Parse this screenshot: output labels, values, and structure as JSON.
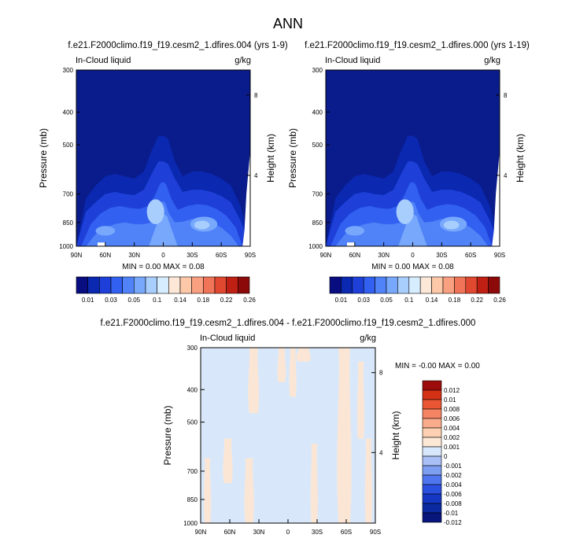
{
  "figure": {
    "title": "ANN"
  },
  "colors": {
    "abs_palette": [
      "#080d80",
      "#0a28b0",
      "#1e40d8",
      "#3260f0",
      "#5082f8",
      "#78a8fc",
      "#a8cefe",
      "#d6ecff",
      "#fde8d8",
      "#fcc8a8",
      "#f8a080",
      "#f07458",
      "#e04830",
      "#c02014",
      "#8c0a0a"
    ],
    "diff_palette": [
      "#08167c",
      "#0a2aa0",
      "#1438c4",
      "#2a50e0",
      "#4f76ee",
      "#7e9ef2",
      "#a8c0f6",
      "#d8e8fc",
      "#fde8d6",
      "#fcd0b0",
      "#faab8c",
      "#f58464",
      "#ea5634",
      "#d43016",
      "#9c0c0a"
    ],
    "base_fill": "#0a1c8c",
    "diff_base": "#d8e8fa",
    "diff_warm": "#fbe6d6"
  },
  "chart_data": [
    {
      "type": "heatmap",
      "panel": "left",
      "title": "f.e21.F2000climo.f19_f19.cesm2_1.dfires.004 (yrs 1-9)",
      "variable": "In-Cloud liquid",
      "units": "g/kg",
      "ylabel": "Pressure (mb)",
      "ylabel_right": "Height (km)",
      "y_ticks": [
        "300",
        "400",
        "500",
        "700",
        "850",
        "1000"
      ],
      "y_tick_values": [
        300,
        400,
        500,
        700,
        850,
        1000
      ],
      "y_scale": "log",
      "y_right_ticks": [
        "8",
        "4"
      ],
      "y_right_values_pressure": [
        356,
        616
      ],
      "x_ticks": [
        "90N",
        "60N",
        "30N",
        "0",
        "30S",
        "60S",
        "90S"
      ],
      "x_tick_values": [
        90,
        60,
        30,
        0,
        -30,
        -60,
        -90
      ],
      "stats": {
        "min_label": "MIN =",
        "min": "0.00",
        "max_label": "MAX =",
        "max": "0.08"
      },
      "colorbar_labels": [
        "0.01",
        "0.03",
        "0.05",
        "0.1",
        "0.14",
        "0.18",
        "0.22",
        "0.26"
      ],
      "contours": [
        {
          "level": 1,
          "lat": [
            90,
            80,
            70,
            60,
            50,
            40,
            30,
            20,
            12,
            5,
            0,
            -5,
            -12,
            -20,
            -30,
            -40,
            -50,
            -60,
            -70,
            -80,
            -90
          ],
          "p_top": [
            1000,
            720,
            660,
            620,
            610,
            620,
            630,
            600,
            520,
            470,
            470,
            480,
            560,
            620,
            600,
            600,
            610,
            630,
            660,
            760,
            1000
          ]
        },
        {
          "level": 2,
          "lat": [
            90,
            80,
            70,
            60,
            50,
            40,
            30,
            20,
            12,
            5,
            0,
            -5,
            -12,
            -20,
            -30,
            -40,
            -50,
            -60,
            -70,
            -80,
            -90
          ],
          "p_top": [
            1000,
            790,
            740,
            700,
            690,
            700,
            705,
            680,
            610,
            560,
            560,
            570,
            630,
            690,
            680,
            680,
            690,
            710,
            740,
            840,
            1000
          ]
        },
        {
          "level": 3,
          "lat": [
            85,
            75,
            65,
            55,
            45,
            35,
            25,
            15,
            8,
            3,
            0,
            -3,
            -8,
            -15,
            -25,
            -35,
            -45,
            -55,
            -65,
            -75,
            -82
          ],
          "p_top": [
            1000,
            860,
            800,
            770,
            760,
            770,
            775,
            760,
            700,
            650,
            645,
            655,
            720,
            780,
            760,
            750,
            755,
            775,
            810,
            880,
            1000
          ]
        },
        {
          "level": 4,
          "lat": [
            80,
            70,
            60,
            50,
            40,
            30,
            20,
            12,
            6,
            2,
            0,
            -2,
            -6,
            -12,
            -20,
            -30,
            -40,
            -50,
            -60,
            -70,
            -78
          ],
          "p_top": [
            1000,
            920,
            880,
            860,
            850,
            860,
            860,
            850,
            800,
            740,
            735,
            745,
            800,
            850,
            845,
            830,
            835,
            850,
            880,
            930,
            1000
          ]
        },
        {
          "level": 5,
          "lat": [
            15,
            8,
            4,
            0,
            -4,
            -8,
            -15
          ],
          "p_top": [
            1000,
            880,
            820,
            800,
            815,
            880,
            1000
          ]
        }
      ],
      "blobs": [
        {
          "level": 6,
          "lat": 8,
          "p": 790,
          "rlat": 9,
          "rp": 70
        },
        {
          "level": 5,
          "lat": -42,
          "p": 860,
          "rlat": 14,
          "rp": 45
        },
        {
          "level": 6,
          "lat": -40,
          "p": 865,
          "rlat": 8,
          "rp": 26
        },
        {
          "level": 5,
          "lat": 60,
          "p": 900,
          "rlat": 10,
          "rp": 30
        }
      ]
    },
    {
      "type": "heatmap",
      "panel": "right",
      "title": "f.e21.F2000climo.f19_f19.cesm2_1.dfires.000 (yrs 1-19)",
      "variable": "In-Cloud liquid",
      "units": "g/kg",
      "ylabel": "Pressure (mb)",
      "ylabel_right": "Height (km)",
      "y_ticks": [
        "300",
        "400",
        "500",
        "700",
        "850",
        "1000"
      ],
      "y_tick_values": [
        300,
        400,
        500,
        700,
        850,
        1000
      ],
      "y_scale": "log",
      "y_right_ticks": [
        "8",
        "4"
      ],
      "y_right_values_pressure": [
        356,
        616
      ],
      "x_ticks": [
        "90N",
        "60N",
        "30N",
        "0",
        "30S",
        "60S",
        "90S"
      ],
      "x_tick_values": [
        90,
        60,
        30,
        0,
        -30,
        -60,
        -90
      ],
      "stats": {
        "min_label": "MIN =",
        "min": "0.00",
        "max_label": "MAX =",
        "max": "0.08"
      },
      "colorbar_labels": [
        "0.01",
        "0.03",
        "0.05",
        "0.1",
        "0.14",
        "0.18",
        "0.22",
        "0.26"
      ],
      "contours": [
        {
          "level": 1,
          "lat": [
            90,
            80,
            70,
            60,
            50,
            40,
            30,
            20,
            12,
            5,
            0,
            -5,
            -12,
            -20,
            -30,
            -40,
            -50,
            -60,
            -70,
            -80,
            -90
          ],
          "p_top": [
            1000,
            720,
            660,
            620,
            610,
            620,
            630,
            600,
            520,
            470,
            470,
            480,
            560,
            620,
            600,
            600,
            610,
            630,
            660,
            760,
            1000
          ]
        },
        {
          "level": 2,
          "lat": [
            90,
            80,
            70,
            60,
            50,
            40,
            30,
            20,
            12,
            5,
            0,
            -5,
            -12,
            -20,
            -30,
            -40,
            -50,
            -60,
            -70,
            -80,
            -90
          ],
          "p_top": [
            1000,
            790,
            740,
            700,
            690,
            700,
            705,
            680,
            610,
            560,
            560,
            570,
            630,
            690,
            680,
            680,
            690,
            710,
            740,
            840,
            1000
          ]
        },
        {
          "level": 3,
          "lat": [
            85,
            75,
            65,
            55,
            45,
            35,
            25,
            15,
            8,
            3,
            0,
            -3,
            -8,
            -15,
            -25,
            -35,
            -45,
            -55,
            -65,
            -75,
            -82
          ],
          "p_top": [
            1000,
            860,
            800,
            770,
            760,
            770,
            775,
            760,
            700,
            650,
            645,
            655,
            720,
            780,
            760,
            750,
            755,
            775,
            810,
            880,
            1000
          ]
        },
        {
          "level": 4,
          "lat": [
            80,
            70,
            60,
            50,
            40,
            30,
            20,
            12,
            6,
            2,
            0,
            -2,
            -6,
            -12,
            -20,
            -30,
            -40,
            -50,
            -60,
            -70,
            -78
          ],
          "p_top": [
            1000,
            920,
            880,
            860,
            850,
            860,
            860,
            850,
            800,
            740,
            735,
            745,
            800,
            850,
            845,
            830,
            835,
            850,
            880,
            930,
            1000
          ]
        },
        {
          "level": 5,
          "lat": [
            15,
            8,
            4,
            0,
            -4,
            -8,
            -15
          ],
          "p_top": [
            1000,
            880,
            820,
            800,
            815,
            880,
            1000
          ]
        }
      ],
      "blobs": [
        {
          "level": 6,
          "lat": 8,
          "p": 790,
          "rlat": 9,
          "rp": 70
        },
        {
          "level": 5,
          "lat": -42,
          "p": 860,
          "rlat": 14,
          "rp": 45
        },
        {
          "level": 6,
          "lat": -40,
          "p": 865,
          "rlat": 8,
          "rp": 26
        },
        {
          "level": 5,
          "lat": 60,
          "p": 900,
          "rlat": 10,
          "rp": 30
        }
      ]
    },
    {
      "type": "heatmap",
      "panel": "diff",
      "title": "f.e21.F2000climo.f19_f19.cesm2_1.dfires.004 - f.e21.F2000climo.f19_f19.cesm2_1.dfires.000",
      "variable": "In-Cloud liquid",
      "units": "g/kg",
      "ylabel": "Pressure (mb)",
      "ylabel_right": "Height (km)",
      "y_ticks": [
        "300",
        "400",
        "500",
        "700",
        "850",
        "1000"
      ],
      "y_tick_values": [
        300,
        400,
        500,
        700,
        850,
        1000
      ],
      "y_scale": "log",
      "y_right_ticks": [
        "8",
        "4"
      ],
      "y_right_values_pressure": [
        356,
        616
      ],
      "x_ticks": [
        "90N",
        "60N",
        "30N",
        "0",
        "30S",
        "60S",
        "90S"
      ],
      "x_tick_values": [
        90,
        60,
        30,
        0,
        -30,
        -60,
        -90
      ],
      "stats": {
        "min_label": "MIN =",
        "min": "-0.00",
        "max_label": "MAX =",
        "max": "0.00"
      },
      "colorbar_labels": [
        "0.012",
        "0.01",
        "0.008",
        "0.006",
        "0.004",
        "0.002",
        "0.001",
        "0",
        "-0.001",
        "-0.002",
        "-0.004",
        "-0.006",
        "-0.008",
        "-0.01",
        "-0.012"
      ],
      "positive_bands": [
        {
          "lat0": 86,
          "lat1": 80,
          "p0": 640,
          "p1": 1000
        },
        {
          "lat0": 66,
          "lat1": 58,
          "p0": 560,
          "p1": 760
        },
        {
          "lat0": 40,
          "lat1": 31,
          "p0": 300,
          "p1": 470
        },
        {
          "lat0": 44,
          "lat1": 36,
          "p0": 640,
          "p1": 1000
        },
        {
          "lat0": 10,
          "lat1": 3,
          "p0": 300,
          "p1": 380
        },
        {
          "lat0": -2,
          "lat1": -8,
          "p0": 300,
          "p1": 420
        },
        {
          "lat0": -10,
          "lat1": -22,
          "p0": 300,
          "p1": 330
        },
        {
          "lat0": -24,
          "lat1": -30,
          "p0": 580,
          "p1": 1000
        },
        {
          "lat0": -52,
          "lat1": -64,
          "p0": 300,
          "p1": 1000
        },
        {
          "lat0": -72,
          "lat1": -78,
          "p0": 330,
          "p1": 560
        },
        {
          "lat0": -80,
          "lat1": -86,
          "p0": 560,
          "p1": 1000
        }
      ]
    }
  ]
}
